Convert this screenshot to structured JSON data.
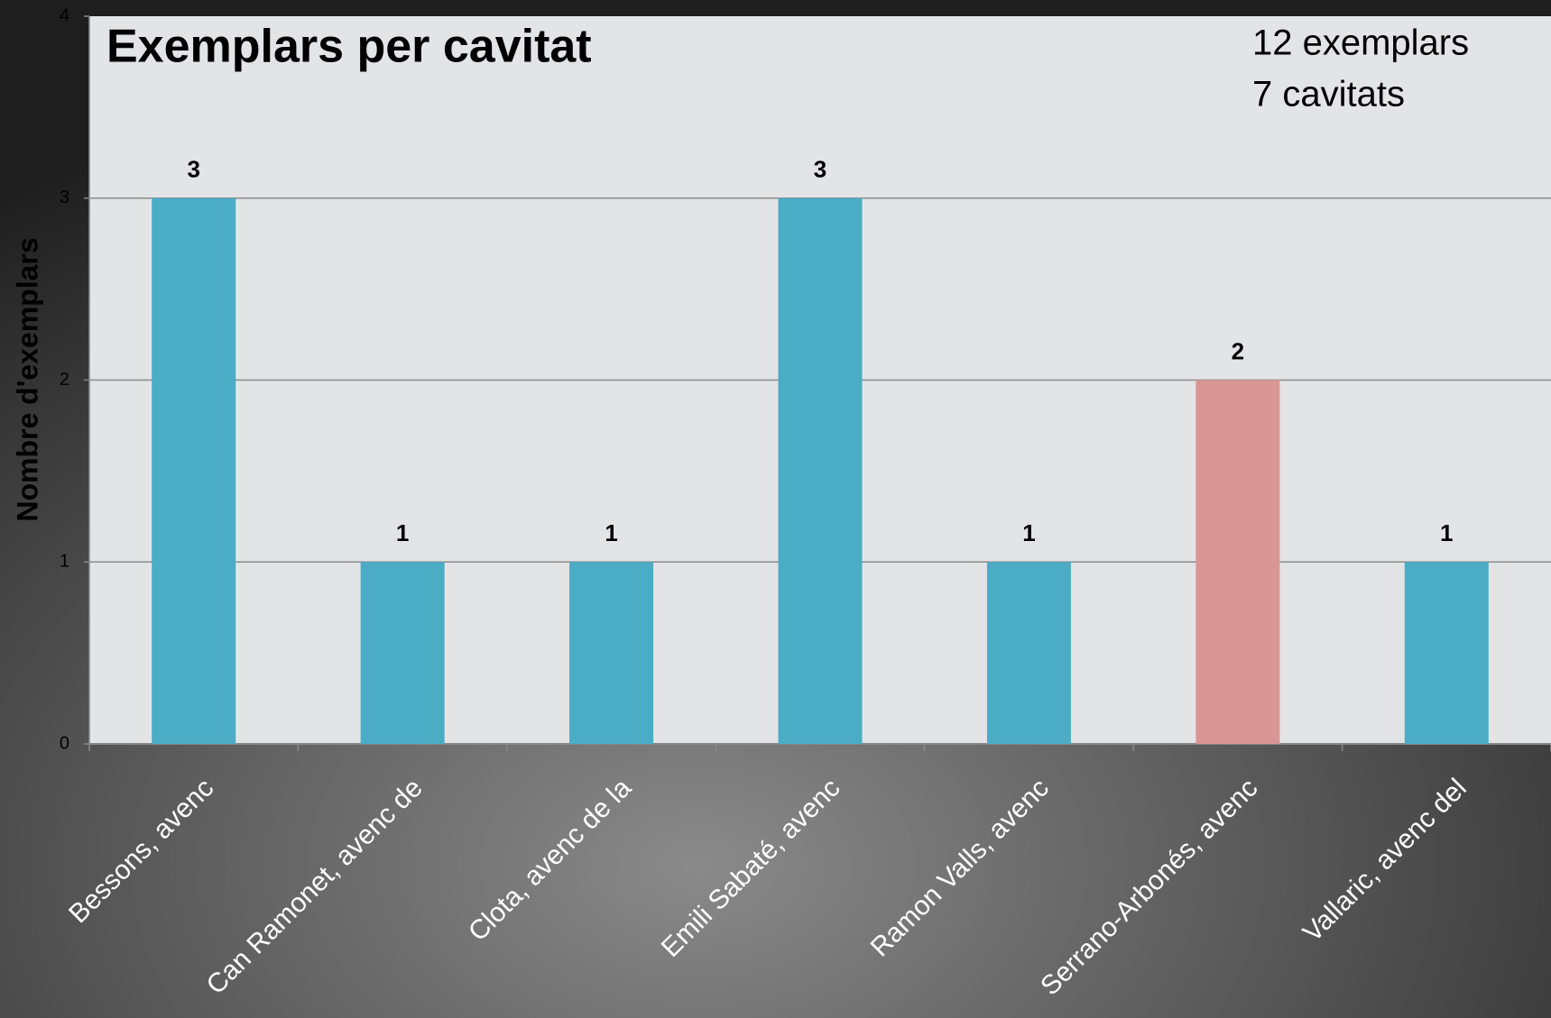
{
  "chart_data": {
    "type": "bar",
    "title": "Exemplars per cavitat",
    "annotations": [
      "12 exemplars",
      "7 cavitats"
    ],
    "y_label": "Nombre d'exemplars",
    "categories": [
      "Bessons, avenc",
      "Can Ramonet, avenc de",
      "Clota, avenc de la",
      "Emili Sabaté, avenc",
      "Ramon Valls, avenc",
      "Serrano-Arbonés, avenc",
      "Vallaric, avenc del"
    ],
    "values": [
      3,
      1,
      1,
      3,
      1,
      2,
      1
    ],
    "colors": [
      "#4bacc6",
      "#4bacc6",
      "#4bacc6",
      "#4bacc6",
      "#4bacc6",
      "#d99694",
      "#4bacc6"
    ],
    "ylim": [
      0,
      4
    ],
    "yticks": [
      0,
      1,
      2,
      3,
      4
    ],
    "grid": true
  }
}
